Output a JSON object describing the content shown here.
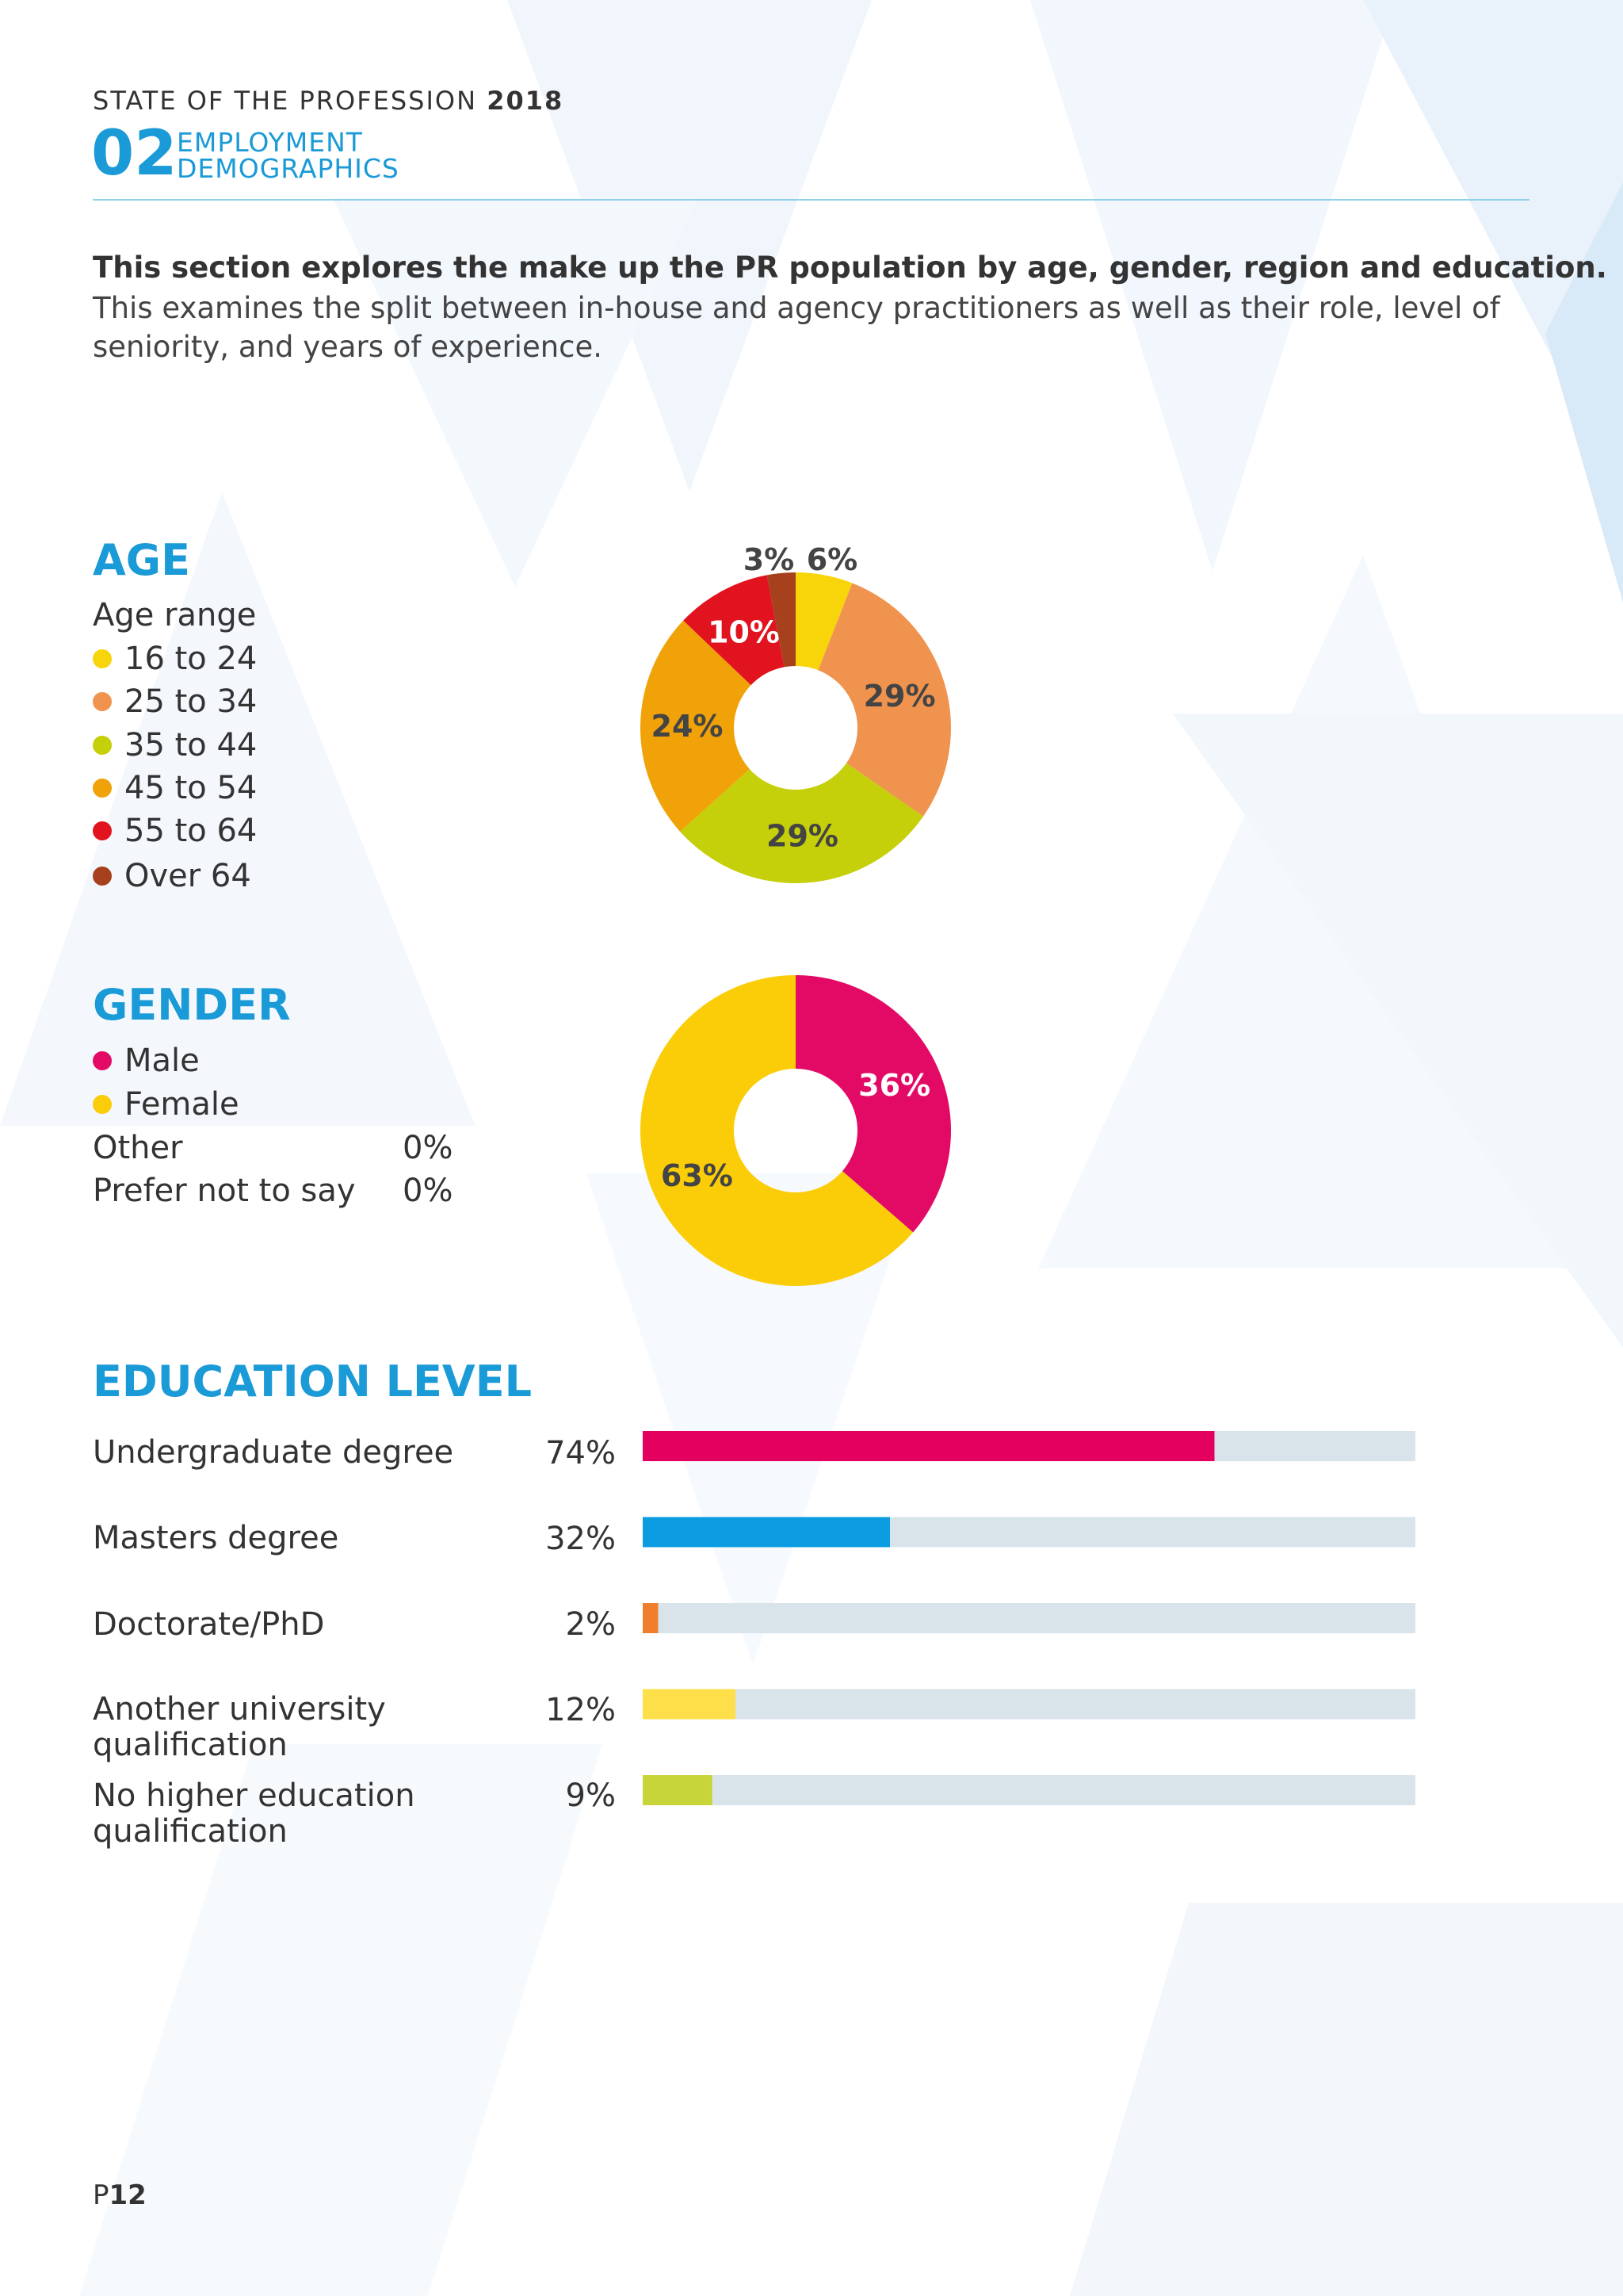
{
  "header": {
    "report_title": "STATE OF THE PROFESSION",
    "report_year": "2018",
    "section_number": "02",
    "section_name_line1": "EMPLOYMENT",
    "section_name_line2": "DEMOGRAPHICS"
  },
  "intro": {
    "bold": "This section explores the make up the PR population by age, gender, region and education.",
    "text": "This examines the split between in-house and agency practitioners as well as their role, level of seniority, and years of experience."
  },
  "age": {
    "heading": "AGE",
    "legend_title": "Age range",
    "legend": [
      {
        "label": "16 to 24",
        "color": "#f8d40a"
      },
      {
        "label": "25 to 34",
        "color": "#ef934e"
      },
      {
        "label": "35 to 44",
        "color": "#c5cf0a"
      },
      {
        "label": "45 to 54",
        "color": "#f0a208"
      },
      {
        "label": "55 to 64",
        "color": "#e1131f"
      },
      {
        "label": "Over 64",
        "color": "#a6401d"
      }
    ]
  },
  "gender": {
    "heading": "GENDER",
    "legend": [
      {
        "label": "Male",
        "color": "#e30a66"
      },
      {
        "label": "Female",
        "color": "#fbcd09"
      }
    ],
    "rows": [
      {
        "label": "Other",
        "value": "0%"
      },
      {
        "label": "Prefer not to say",
        "value": "0%"
      }
    ]
  },
  "education": {
    "heading": "EDUCATION LEVEL",
    "track_color": "#d9e3ea"
  },
  "chart_data": [
    {
      "type": "pie",
      "variant": "donut",
      "categories": [
        "16 to 24",
        "25 to 34",
        "35 to 44",
        "45 to 54",
        "55 to 64",
        "Over 64"
      ],
      "values": [
        6,
        29,
        29,
        24,
        10,
        3
      ],
      "labels": [
        "6%",
        "29%",
        "29%",
        "24%",
        "10%",
        "3%"
      ],
      "colors": [
        "#f8d40a",
        "#ef934e",
        "#c5cf0a",
        "#f0a208",
        "#e1131f",
        "#a6401d"
      ],
      "label_colors": [
        "#444444",
        "#444444",
        "#444444",
        "#444444",
        "#ffffff",
        "#444444"
      ]
    },
    {
      "type": "pie",
      "variant": "donut",
      "categories": [
        "Male",
        "Female"
      ],
      "values": [
        36,
        63
      ],
      "labels": [
        "36%",
        "63%"
      ],
      "colors": [
        "#e30a66",
        "#fbcd09"
      ],
      "label_colors": [
        "#ffffff",
        "#444444"
      ]
    },
    {
      "type": "bar",
      "orientation": "horizontal",
      "categories": [
        "Undergraduate degree",
        "Masters degree",
        "Doctorate/PhD",
        "Another university qualification",
        "No higher education qualification"
      ],
      "values": [
        74,
        32,
        2,
        12,
        9
      ],
      "labels": [
        "74%",
        "32%",
        "2%",
        "12%",
        "9%"
      ],
      "colors": [
        "#e3005e",
        "#0a9be0",
        "#f07f2d",
        "#fddf4a",
        "#c7d43a"
      ],
      "xlim": [
        0,
        100
      ]
    }
  ],
  "footer": {
    "page_prefix": "P",
    "page_number": "12"
  }
}
